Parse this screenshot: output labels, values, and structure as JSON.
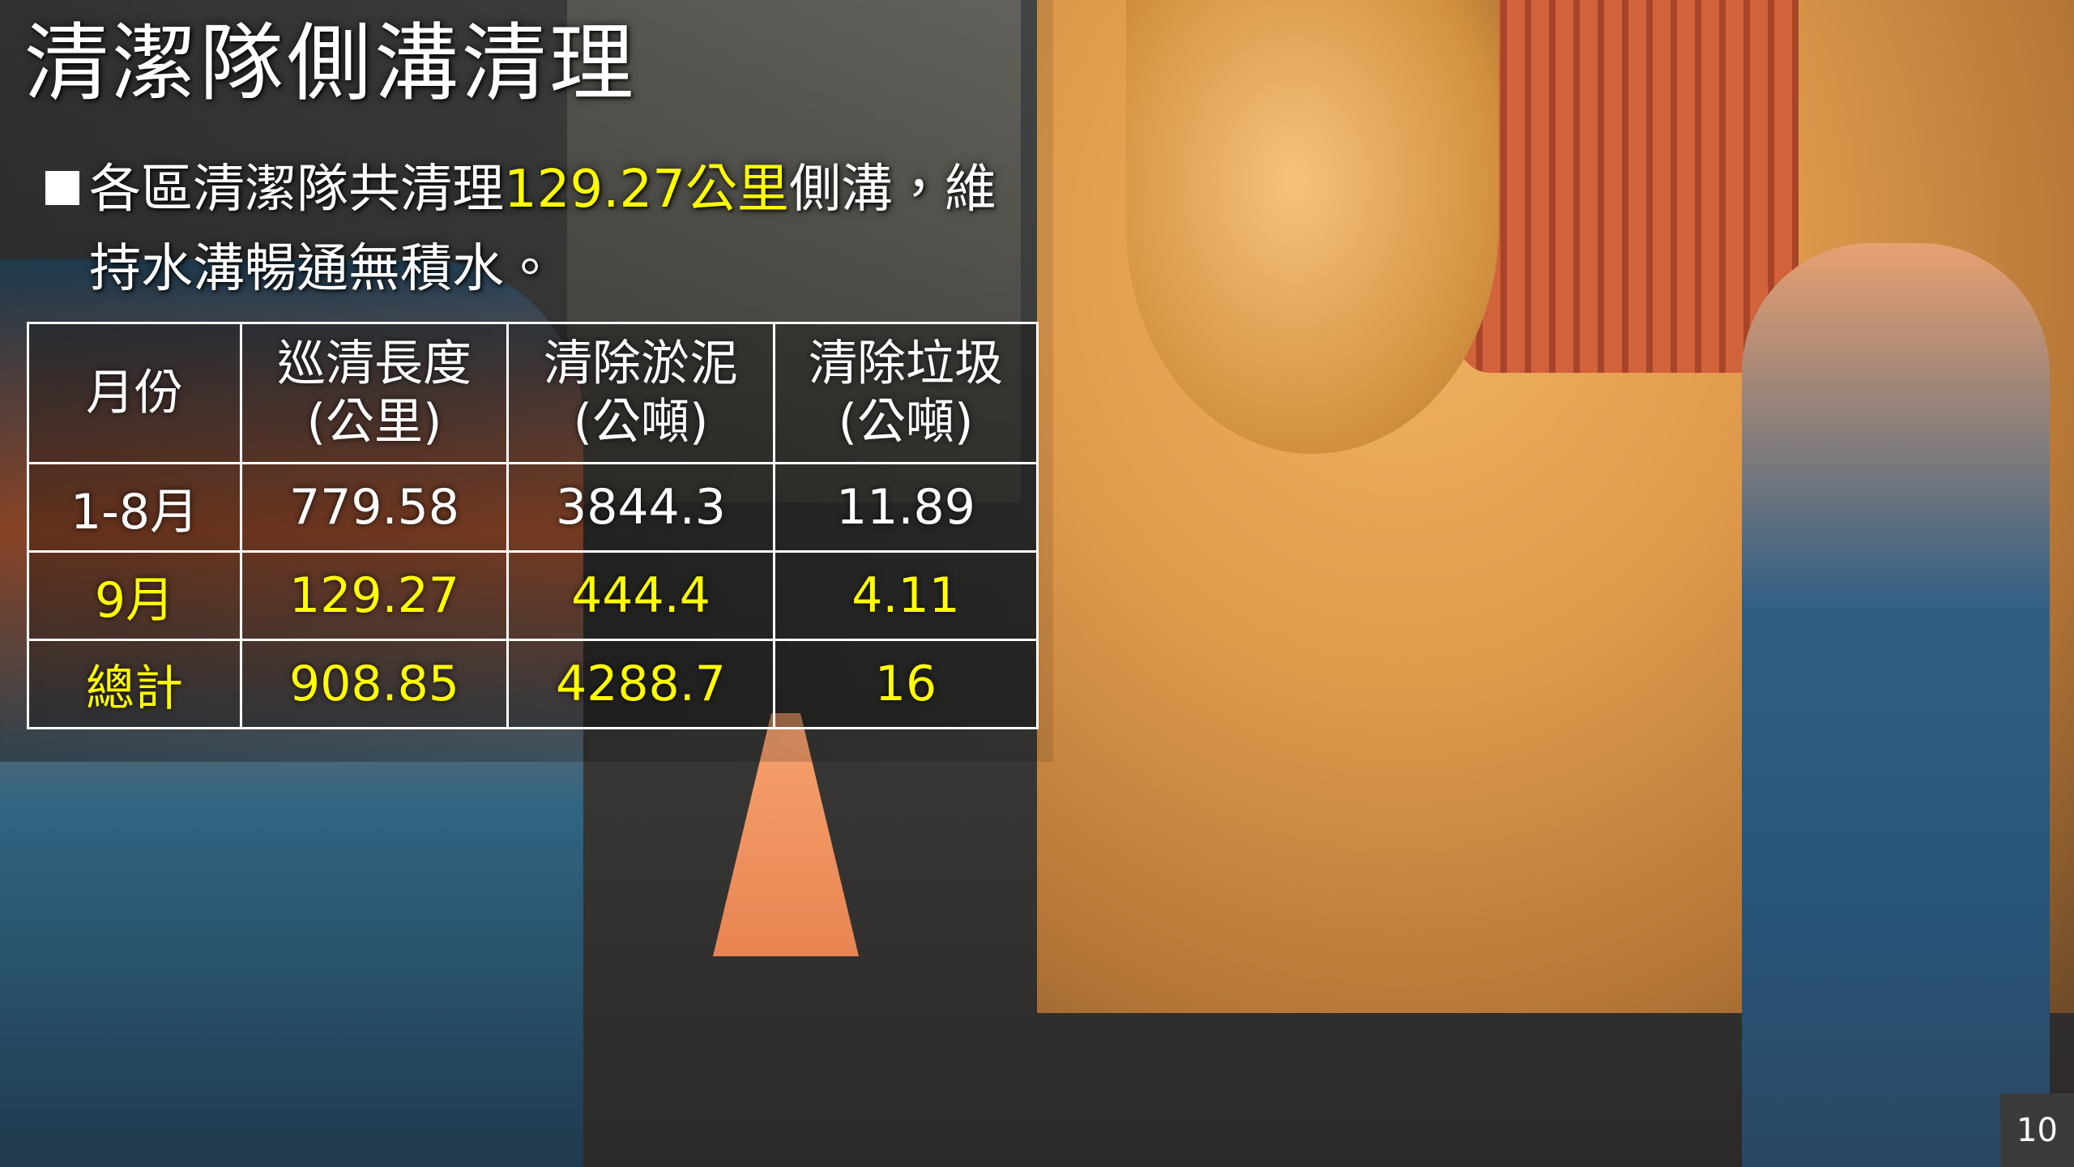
{
  "title": "清潔隊側溝清理",
  "bullet": {
    "line1": [
      "各區清潔隊共清理",
      "129.27公里",
      "側溝，維"
    ],
    "line2": "持水溝暢通無積水。"
  },
  "table": {
    "header": [
      [
        "月份"
      ],
      [
        "巡清長度",
        "(公里)"
      ],
      [
        "清除淤泥",
        "(公噸)"
      ],
      [
        "清除垃圾",
        "(公噸)"
      ]
    ],
    "rows": [
      [
        "1-8月",
        "779.58",
        "3844.3",
        "11.89"
      ],
      [
        "9月",
        "129.27",
        "444.4",
        "4.11"
      ],
      [
        "總計",
        "908.85",
        "4288.7",
        "16"
      ]
    ]
  },
  "page_number": "10"
}
